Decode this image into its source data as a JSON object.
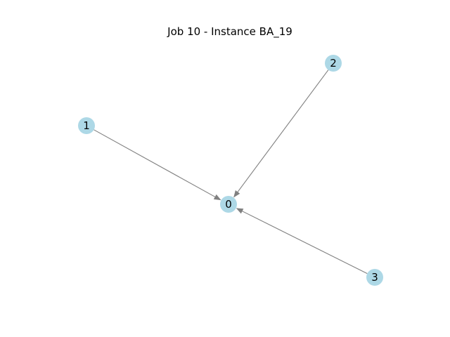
{
  "title": "Job 10 - Instance BA_19",
  "colors": {
    "node_fill": "#add8e6",
    "edge_stroke": "#808080",
    "label": "#000000",
    "background": "#ffffff"
  },
  "nodes": [
    {
      "id": "0",
      "label": "0"
    },
    {
      "id": "1",
      "label": "1"
    },
    {
      "id": "2",
      "label": "2"
    },
    {
      "id": "3",
      "label": "3"
    }
  ],
  "edges": [
    {
      "source": "1",
      "target": "0",
      "directed": true
    },
    {
      "source": "2",
      "target": "0",
      "directed": true
    },
    {
      "source": "3",
      "target": "0",
      "directed": true
    }
  ]
}
